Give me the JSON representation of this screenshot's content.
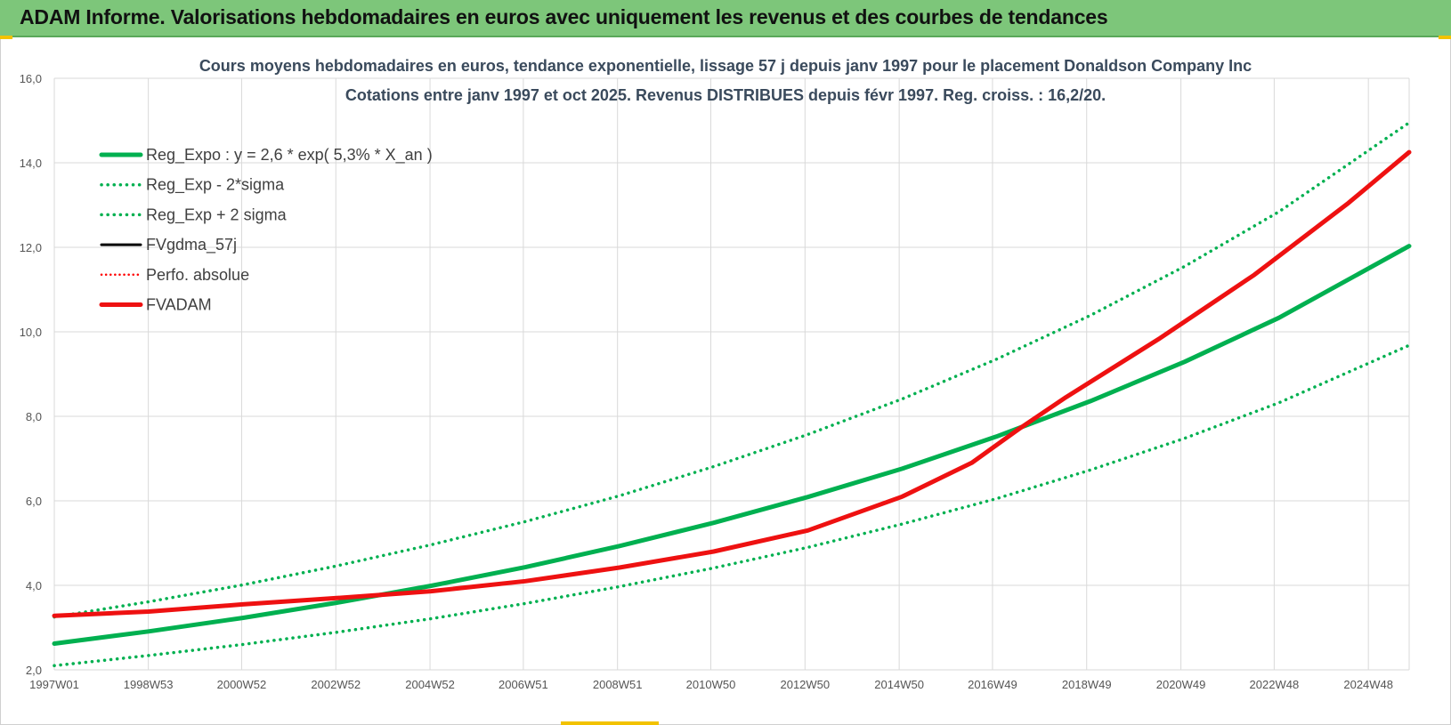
{
  "header": {
    "title": "ADAM Informe. Valorisations hebdomadaires en euros avec uniquement les revenus et des courbes de tendances"
  },
  "colors": {
    "header_bg": "#7dc67a",
    "trend": "#00b050",
    "fvgdma": "#000000",
    "perfo": "#ff0000",
    "fvadam": "#ee1111",
    "grid": "#d9d9d9"
  },
  "chart_data": {
    "type": "line",
    "title_line1": "Cours moyens hebdomadaires en euros, tendance exponentielle, lissage 57 j depuis janv 1997 pour le placement Donaldson Company Inc",
    "title_line2": "Cotations entre janv 1997 et oct 2025. Revenus DISTRIBUES depuis févr 1997. Reg. croiss. : 16,2/20.",
    "x_range": [
      "1997W01",
      "2025W41"
    ],
    "x_tick_labels": [
      "1997W01",
      "1998W53",
      "2000W52",
      "2002W52",
      "2004W52",
      "2006W51",
      "2008W51",
      "2010W50",
      "2012W50",
      "2014W50",
      "2016W49",
      "2018W49",
      "2020W49",
      "2022W48",
      "2024W48"
    ],
    "y_tick_labels": [
      "2,0",
      "4,0",
      "6,0",
      "8,0",
      "10,0",
      "12,0",
      "14,0",
      "16,0"
    ],
    "ylim": [
      2.0,
      16.0
    ],
    "grid": true,
    "legend_position": "top-left",
    "legend": {
      "reg_expo": "Reg_Expo : y = 2,6 * exp( 5,3% *  X_an )",
      "reg_minus": "Reg_Exp - 2*sigma",
      "reg_plus": "Reg_Exp + 2 sigma",
      "fvgdma": "FVgdma_57j",
      "perfo": "Perfo. absolue",
      "fvadam": "FVADAM"
    },
    "series": [
      {
        "name": "Reg_Expo : y = 2,6 * exp( 5,3% *  X_an )",
        "style": "solid",
        "x": [
          "1997W01",
          "1999W01",
          "2001W01",
          "2003W01",
          "2005W01",
          "2007W01",
          "2009W01",
          "2011W01",
          "2013W01",
          "2015W01",
          "2017W01",
          "2019W01",
          "2021W01",
          "2023W01",
          "2025W41"
        ],
        "values": [
          2.62,
          2.91,
          3.23,
          3.59,
          3.99,
          4.43,
          4.93,
          5.48,
          6.09,
          6.76,
          7.52,
          8.36,
          9.29,
          10.33,
          12.03
        ]
      },
      {
        "name": "Reg_Exp - 2*sigma",
        "style": "dotted",
        "x": [
          "1997W01",
          "1999W01",
          "2001W01",
          "2003W01",
          "2005W01",
          "2007W01",
          "2009W01",
          "2011W01",
          "2013W01",
          "2015W01",
          "2017W01",
          "2019W01",
          "2021W01",
          "2023W01",
          "2025W41"
        ],
        "values": [
          2.1,
          2.34,
          2.6,
          2.89,
          3.21,
          3.57,
          3.97,
          4.41,
          4.9,
          5.45,
          6.05,
          6.73,
          7.48,
          8.32,
          9.68
        ]
      },
      {
        "name": "Reg_Exp + 2 sigma",
        "style": "dotted",
        "x": [
          "1997W01",
          "1999W01",
          "2001W01",
          "2003W01",
          "2005W01",
          "2007W01",
          "2009W01",
          "2011W01",
          "2013W01",
          "2015W01",
          "2017W01",
          "2019W01",
          "2021W01",
          "2023W01",
          "2025W41"
        ],
        "values": [
          3.25,
          3.61,
          4.01,
          4.46,
          4.96,
          5.51,
          6.12,
          6.81,
          7.57,
          8.41,
          9.35,
          10.39,
          11.55,
          12.84,
          14.95
        ]
      },
      {
        "name": "FVgdma_57j",
        "style": "solid",
        "x": [
          "1997W01",
          "1999W01",
          "2001W01",
          "2003W01",
          "2005W01",
          "2007W01",
          "2009W01",
          "2011W01",
          "2013W01",
          "2015W01",
          "2016W26",
          "2017W26",
          "2018W26",
          "2019W26",
          "2020W26",
          "2021W26",
          "2022W26",
          "2023W26",
          "2024W26",
          "2025W41"
        ],
        "values": [
          3.28,
          3.38,
          3.55,
          3.7,
          3.86,
          4.1,
          4.42,
          4.8,
          5.3,
          6.1,
          6.9,
          7.7,
          8.45,
          9.15,
          9.85,
          10.6,
          11.35,
          12.2,
          13.05,
          14.25
        ]
      },
      {
        "name": "Perfo. absolue",
        "style": "dotted",
        "x": [
          "1997W01",
          "1999W01",
          "2001W01",
          "2003W01",
          "2005W01",
          "2007W01",
          "2009W01",
          "2011W01",
          "2013W01",
          "2015W01",
          "2016W26",
          "2017W26",
          "2018W26",
          "2019W26",
          "2020W26",
          "2021W26",
          "2022W26",
          "2023W26",
          "2024W26",
          "2025W41"
        ],
        "values": [
          3.28,
          3.38,
          3.55,
          3.7,
          3.86,
          4.1,
          4.42,
          4.8,
          5.3,
          6.1,
          6.9,
          7.7,
          8.45,
          9.15,
          9.85,
          10.6,
          11.35,
          12.2,
          13.05,
          14.25
        ]
      },
      {
        "name": "FVADAM",
        "style": "solid",
        "x": [
          "1997W01",
          "1999W01",
          "2001W01",
          "2003W01",
          "2005W01",
          "2007W01",
          "2009W01",
          "2011W01",
          "2013W01",
          "2015W01",
          "2016W26",
          "2017W26",
          "2018W26",
          "2019W26",
          "2020W26",
          "2021W26",
          "2022W26",
          "2023W26",
          "2024W26",
          "2025W41"
        ],
        "values": [
          3.28,
          3.38,
          3.55,
          3.7,
          3.86,
          4.1,
          4.42,
          4.8,
          5.3,
          6.1,
          6.9,
          7.7,
          8.45,
          9.15,
          9.85,
          10.6,
          11.35,
          12.2,
          13.05,
          14.25
        ]
      }
    ]
  }
}
